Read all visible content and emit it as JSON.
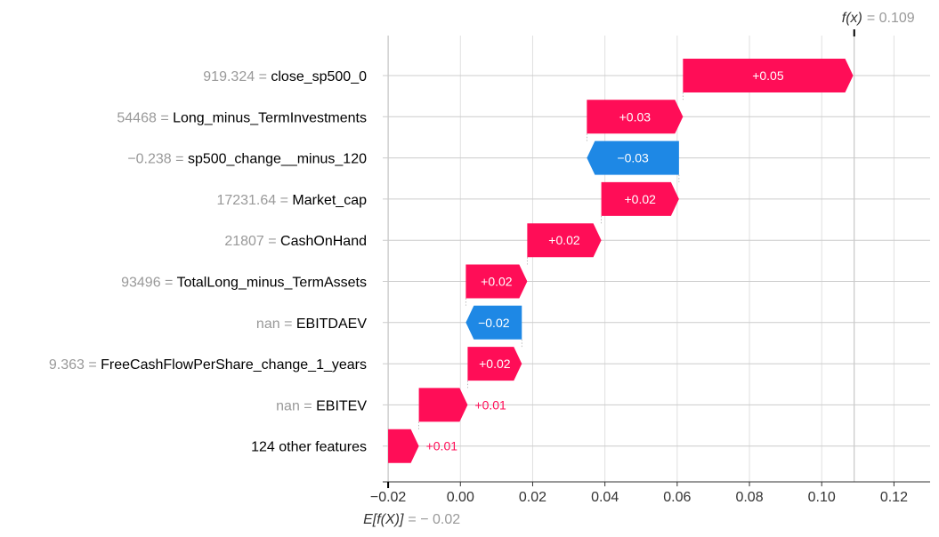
{
  "chart_data": {
    "type": "waterfall",
    "title": "",
    "fx_prefix": "f(x)",
    "fx_value": "= 0.109",
    "efx_prefix": "E[f(X)]",
    "efx_value": "= − 0.02",
    "base_value": -0.02,
    "final_value": 0.109,
    "xlim": [
      -0.0215,
      0.13
    ],
    "xticks": [
      -0.02,
      0.0,
      0.02,
      0.04,
      0.06,
      0.08,
      0.1,
      0.12
    ],
    "xtick_labels": [
      "−0.02",
      "0.00",
      "0.02",
      "0.04",
      "0.06",
      "0.08",
      "0.10",
      "0.12"
    ],
    "positive_color": "#ff0d57",
    "negative_color": "#1e88e5",
    "features": [
      {
        "value": "919.324",
        "name": "close_sp500_0",
        "start": 0.0616,
        "end": 0.1087,
        "label": "+0.05"
      },
      {
        "value": "54468",
        "name": "Long_minus_TermInvestments",
        "start": 0.035,
        "end": 0.0616,
        "label": "+0.03"
      },
      {
        "value": "−0.238",
        "name": "sp500_change__minus_120",
        "start": 0.0605,
        "end": 0.035,
        "label": "−0.03"
      },
      {
        "value": "17231.64",
        "name": "Market_cap",
        "start": 0.039,
        "end": 0.0605,
        "label": "+0.02"
      },
      {
        "value": "21807",
        "name": "CashOnHand",
        "start": 0.0185,
        "end": 0.039,
        "label": "+0.02"
      },
      {
        "value": "93496",
        "name": "TotalLong_minus_TermAssets",
        "start": 0.0015,
        "end": 0.0185,
        "label": "+0.02"
      },
      {
        "value": "nan",
        "name": "EBITDAEV",
        "start": 0.017,
        "end": 0.0015,
        "label": "−0.02"
      },
      {
        "value": "9.363",
        "name": "FreeCashFlowPerShare_change_1_years",
        "start": 0.002,
        "end": 0.017,
        "label": "+0.02"
      },
      {
        "value": "nan",
        "name": "EBITEV",
        "start": -0.0115,
        "end": 0.002,
        "label": "+0.01"
      },
      {
        "value": "",
        "name": "124 other features",
        "start": -0.02,
        "end": -0.0115,
        "label": "+0.01"
      }
    ]
  }
}
